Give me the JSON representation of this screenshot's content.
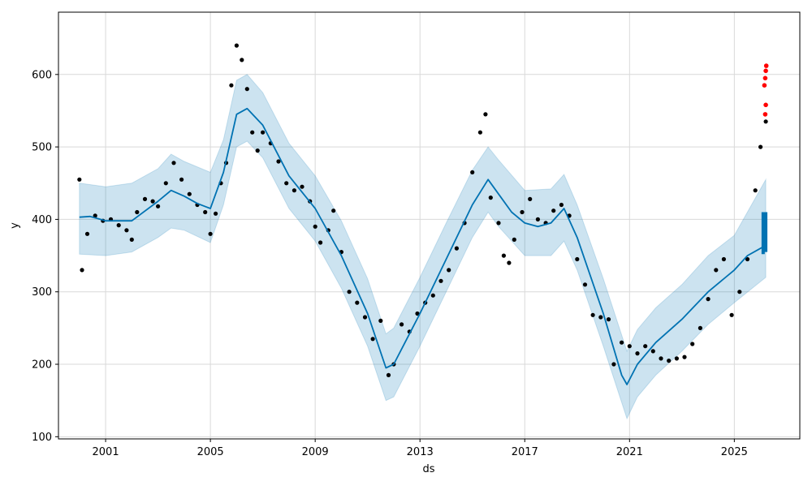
{
  "chart_data": {
    "type": "scatter",
    "title": "",
    "xlabel": "ds",
    "ylabel": "y",
    "xlim": [
      1999.2,
      2027.5
    ],
    "ylim": [
      97,
      686
    ],
    "x_ticks": [
      2001,
      2005,
      2009,
      2013,
      2017,
      2021,
      2025
    ],
    "x_tick_labels": [
      "2001",
      "2005",
      "2009",
      "2013",
      "2017",
      "2021",
      "2025"
    ],
    "y_ticks": [
      100,
      200,
      300,
      400,
      500,
      600
    ],
    "y_tick_labels": [
      "100",
      "200",
      "300",
      "400",
      "500",
      "600"
    ],
    "grid": true,
    "legend": "none",
    "colors": {
      "observed": "#000000",
      "forecast": "#0072B2",
      "uncertainty": "#0072B2",
      "outliers": "#ff0000",
      "grid": "#d9d9d9"
    },
    "series": [
      {
        "kind": "observed",
        "points": [
          [
            2000.0,
            455
          ],
          [
            2000.1,
            330
          ],
          [
            2000.3,
            380
          ],
          [
            2000.6,
            405
          ],
          [
            2000.9,
            398
          ],
          [
            2001.2,
            400
          ],
          [
            2001.5,
            392
          ],
          [
            2001.8,
            385
          ],
          [
            2002.0,
            372
          ],
          [
            2002.2,
            410
          ],
          [
            2002.5,
            428
          ],
          [
            2002.8,
            425
          ],
          [
            2003.0,
            418
          ],
          [
            2003.3,
            450
          ],
          [
            2003.6,
            478
          ],
          [
            2003.9,
            455
          ],
          [
            2004.2,
            435
          ],
          [
            2004.5,
            420
          ],
          [
            2004.8,
            410
          ],
          [
            2005.0,
            380
          ],
          [
            2005.2,
            408
          ],
          [
            2005.4,
            450
          ],
          [
            2005.6,
            478
          ],
          [
            2005.8,
            585
          ],
          [
            2006.0,
            640
          ],
          [
            2006.2,
            620
          ],
          [
            2006.4,
            580
          ],
          [
            2006.6,
            520
          ],
          [
            2006.8,
            495
          ],
          [
            2007.0,
            520
          ],
          [
            2007.3,
            505
          ],
          [
            2007.6,
            480
          ],
          [
            2007.9,
            450
          ],
          [
            2008.2,
            440
          ],
          [
            2008.5,
            445
          ],
          [
            2008.8,
            425
          ],
          [
            2009.0,
            390
          ],
          [
            2009.2,
            368
          ],
          [
            2009.5,
            385
          ],
          [
            2009.7,
            412
          ],
          [
            2010.0,
            355
          ],
          [
            2010.3,
            300
          ],
          [
            2010.6,
            285
          ],
          [
            2010.9,
            265
          ],
          [
            2011.2,
            235
          ],
          [
            2011.5,
            260
          ],
          [
            2011.8,
            185
          ],
          [
            2012.0,
            200
          ],
          [
            2012.3,
            255
          ],
          [
            2012.6,
            245
          ],
          [
            2012.9,
            270
          ],
          [
            2013.2,
            285
          ],
          [
            2013.5,
            295
          ],
          [
            2013.8,
            315
          ],
          [
            2014.1,
            330
          ],
          [
            2014.4,
            360
          ],
          [
            2014.7,
            395
          ],
          [
            2015.0,
            465
          ],
          [
            2015.3,
            520
          ],
          [
            2015.5,
            545
          ],
          [
            2015.7,
            430
          ],
          [
            2016.0,
            395
          ],
          [
            2016.2,
            350
          ],
          [
            2016.4,
            340
          ],
          [
            2016.6,
            372
          ],
          [
            2016.9,
            410
          ],
          [
            2017.2,
            428
          ],
          [
            2017.5,
            400
          ],
          [
            2017.8,
            395
          ],
          [
            2018.1,
            412
          ],
          [
            2018.4,
            420
          ],
          [
            2018.7,
            405
          ],
          [
            2019.0,
            345
          ],
          [
            2019.3,
            310
          ],
          [
            2019.6,
            268
          ],
          [
            2019.9,
            265
          ],
          [
            2020.2,
            262
          ],
          [
            2020.4,
            200
          ],
          [
            2020.7,
            230
          ],
          [
            2021.0,
            225
          ],
          [
            2021.3,
            215
          ],
          [
            2021.6,
            225
          ],
          [
            2021.9,
            218
          ],
          [
            2022.2,
            208
          ],
          [
            2022.5,
            205
          ],
          [
            2022.8,
            208
          ],
          [
            2023.1,
            210
          ],
          [
            2023.4,
            228
          ],
          [
            2023.7,
            250
          ],
          [
            2024.0,
            290
          ],
          [
            2024.3,
            330
          ],
          [
            2024.6,
            345
          ],
          [
            2024.9,
            268
          ],
          [
            2025.2,
            300
          ],
          [
            2025.5,
            345
          ],
          [
            2025.8,
            440
          ],
          [
            2026.0,
            500
          ],
          [
            2026.2,
            535
          ]
        ]
      },
      {
        "kind": "forecast",
        "points": [
          [
            2000.0,
            403
          ],
          [
            2000.4,
            404
          ],
          [
            2001.0,
            398
          ],
          [
            2002.0,
            398
          ],
          [
            2003.0,
            425
          ],
          [
            2003.5,
            440
          ],
          [
            2004.0,
            432
          ],
          [
            2004.5,
            422
          ],
          [
            2005.0,
            415
          ],
          [
            2005.5,
            465
          ],
          [
            2006.0,
            545
          ],
          [
            2006.4,
            553
          ],
          [
            2007.0,
            530
          ],
          [
            2008.0,
            460
          ],
          [
            2009.0,
            415
          ],
          [
            2010.0,
            350
          ],
          [
            2011.0,
            270
          ],
          [
            2011.7,
            195
          ],
          [
            2012.0,
            200
          ],
          [
            2013.0,
            270
          ],
          [
            2014.0,
            345
          ],
          [
            2015.0,
            420
          ],
          [
            2015.6,
            455
          ],
          [
            2016.0,
            435
          ],
          [
            2016.5,
            410
          ],
          [
            2017.0,
            395
          ],
          [
            2017.5,
            390
          ],
          [
            2018.0,
            395
          ],
          [
            2018.5,
            415
          ],
          [
            2019.0,
            375
          ],
          [
            2020.0,
            270
          ],
          [
            2020.7,
            185
          ],
          [
            2020.9,
            172
          ],
          [
            2021.3,
            200
          ],
          [
            2022.0,
            230
          ],
          [
            2023.0,
            262
          ],
          [
            2024.0,
            300
          ],
          [
            2025.0,
            330
          ],
          [
            2025.5,
            350
          ],
          [
            2026.1,
            362
          ],
          [
            2026.2,
            375
          ]
        ]
      },
      {
        "kind": "forecast-range",
        "points": [
          [
            2026.1,
            352,
            410
          ],
          [
            2026.2,
            355,
            410
          ]
        ]
      },
      {
        "kind": "uncertainty",
        "points": [
          [
            2000.0,
            352,
            450
          ],
          [
            2001.0,
            350,
            445
          ],
          [
            2002.0,
            355,
            450
          ],
          [
            2003.0,
            375,
            470
          ],
          [
            2003.5,
            388,
            490
          ],
          [
            2004.0,
            385,
            480
          ],
          [
            2005.0,
            368,
            465
          ],
          [
            2005.5,
            420,
            510
          ],
          [
            2006.0,
            500,
            592
          ],
          [
            2006.4,
            508,
            600
          ],
          [
            2007.0,
            485,
            575
          ],
          [
            2008.0,
            415,
            505
          ],
          [
            2009.0,
            370,
            460
          ],
          [
            2010.0,
            305,
            398
          ],
          [
            2011.0,
            225,
            318
          ],
          [
            2011.7,
            150,
            242
          ],
          [
            2012.0,
            155,
            250
          ],
          [
            2013.0,
            225,
            320
          ],
          [
            2014.0,
            300,
            395
          ],
          [
            2015.0,
            375,
            468
          ],
          [
            2015.6,
            410,
            500
          ],
          [
            2016.0,
            390,
            482
          ],
          [
            2017.0,
            350,
            440
          ],
          [
            2018.0,
            350,
            442
          ],
          [
            2018.5,
            370,
            462
          ],
          [
            2019.0,
            330,
            420
          ],
          [
            2020.0,
            225,
            318
          ],
          [
            2020.9,
            125,
            218
          ],
          [
            2021.3,
            155,
            248
          ],
          [
            2022.0,
            185,
            278
          ],
          [
            2023.0,
            218,
            310
          ],
          [
            2024.0,
            255,
            350
          ],
          [
            2025.0,
            285,
            378
          ],
          [
            2026.2,
            320,
            455
          ]
        ]
      },
      {
        "kind": "outliers",
        "points": [
          [
            2026.15,
            585
          ],
          [
            2026.18,
            595
          ],
          [
            2026.2,
            605
          ],
          [
            2026.22,
            612
          ],
          [
            2026.2,
            558
          ],
          [
            2026.18,
            545
          ]
        ]
      }
    ]
  }
}
